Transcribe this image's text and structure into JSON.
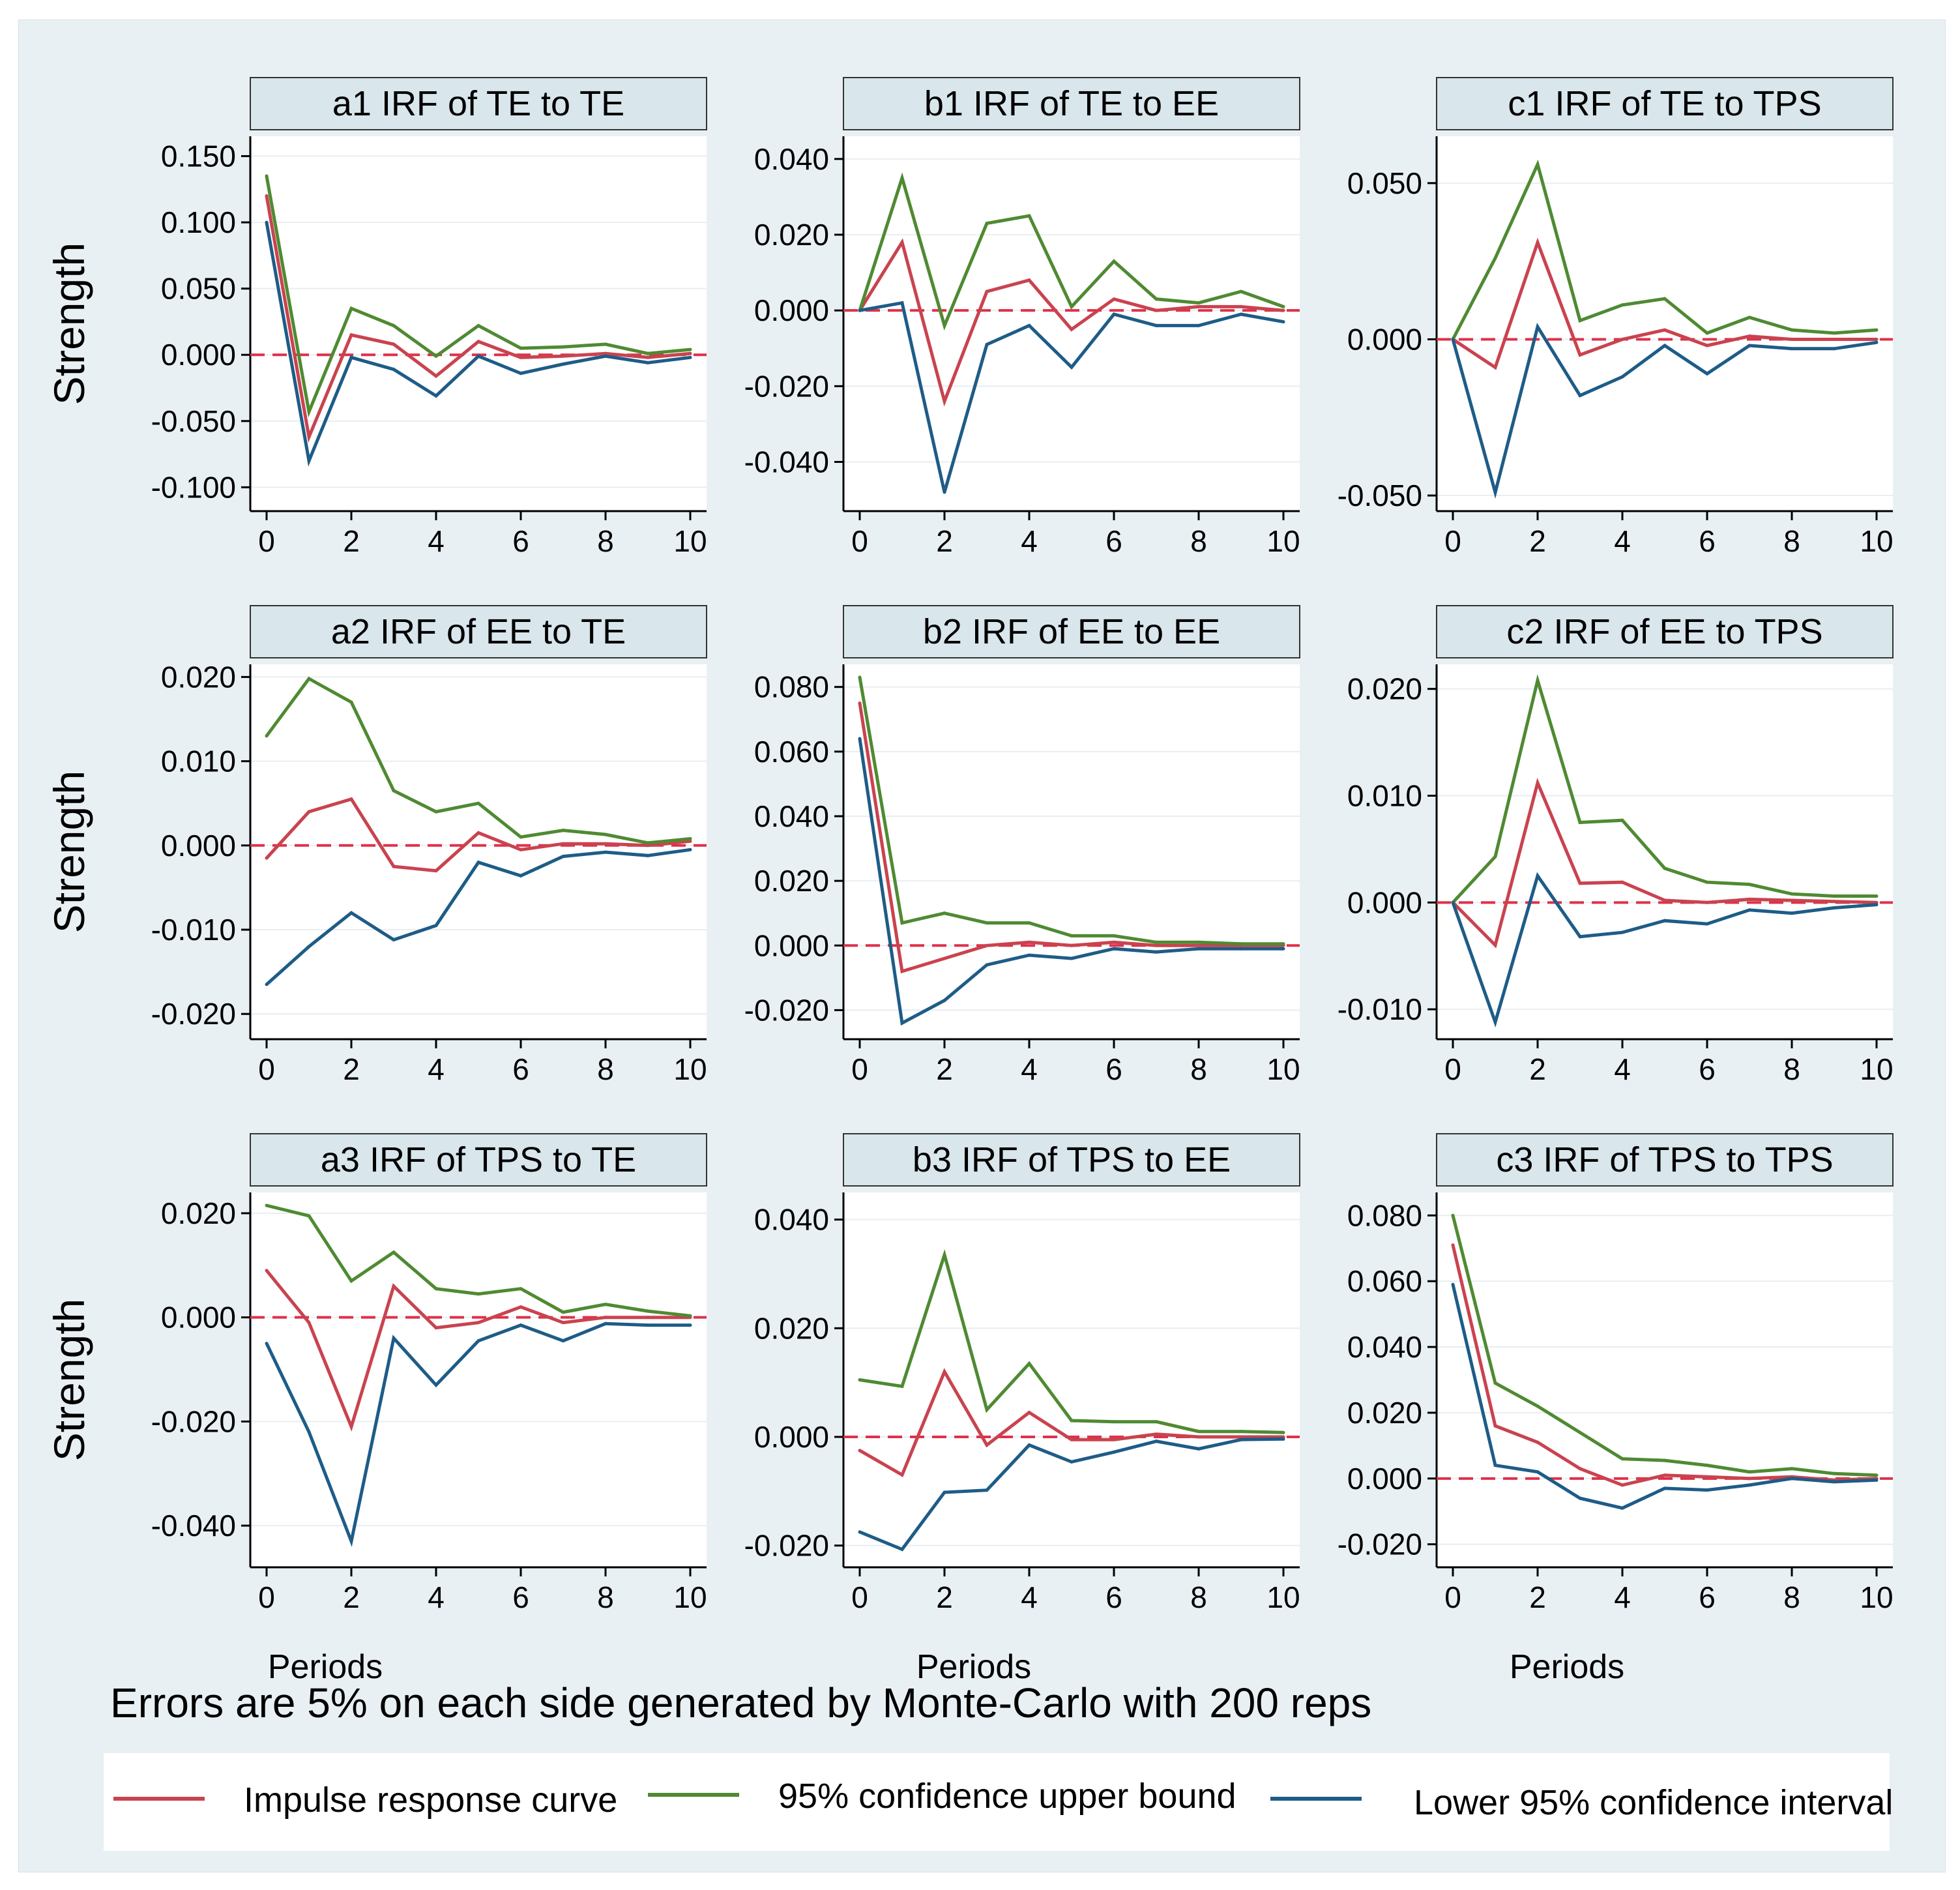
{
  "chart_data": [
    {
      "id": "a1",
      "type": "line",
      "title": "a1 IRF of TE to TE",
      "ylabel": "Strength",
      "xlabel": "",
      "x": [
        0,
        1,
        2,
        3,
        4,
        5,
        6,
        7,
        8,
        9,
        10
      ],
      "xticks": [
        0,
        2,
        4,
        6,
        8,
        10
      ],
      "yticks": [
        -0.1,
        -0.05,
        0,
        0.05,
        0.1,
        0.15
      ],
      "ytick_labels": [
        "-0.100",
        "-0.050",
        "0.000",
        "0.050",
        "0.100",
        "0.150"
      ],
      "ylim": [
        -0.118,
        0.165
      ],
      "series": [
        {
          "name": "Impulse response curve",
          "values": [
            0.12,
            -0.062,
            0.015,
            0.008,
            -0.016,
            0.01,
            -0.002,
            -0.001,
            0.001,
            -0.002,
            0.001
          ]
        },
        {
          "name": "95% confidence upper bound",
          "values": [
            0.135,
            -0.043,
            0.035,
            0.022,
            -0.001,
            0.022,
            0.005,
            0.006,
            0.008,
            0.001,
            0.004
          ]
        },
        {
          "name": "Lower 95% confidence interval",
          "values": [
            0.1,
            -0.08,
            -0.002,
            -0.011,
            -0.031,
            -0.001,
            -0.014,
            -0.007,
            -0.001,
            -0.006,
            -0.002
          ]
        }
      ]
    },
    {
      "id": "b1",
      "type": "line",
      "title": "b1 IRF of TE to EE",
      "ylabel": "",
      "xlabel": "",
      "x": [
        0,
        1,
        2,
        3,
        4,
        5,
        6,
        7,
        8,
        9,
        10
      ],
      "xticks": [
        0,
        2,
        4,
        6,
        8,
        10
      ],
      "yticks": [
        -0.04,
        -0.02,
        0,
        0.02,
        0.04
      ],
      "ytick_labels": [
        "-0.040",
        "-0.020",
        "0.000",
        "0.020",
        "0.040"
      ],
      "ylim": [
        -0.053,
        0.046
      ],
      "series": [
        {
          "name": "Impulse response curve",
          "values": [
            0,
            0.018,
            -0.024,
            0.005,
            0.008,
            -0.005,
            0.003,
            0,
            0.001,
            0.001,
            0
          ]
        },
        {
          "name": "95% confidence upper bound",
          "values": [
            0,
            0.035,
            -0.004,
            0.023,
            0.025,
            0.001,
            0.013,
            0.003,
            0.002,
            0.005,
            0.001
          ]
        },
        {
          "name": "Lower 95% confidence interval",
          "values": [
            0,
            0.002,
            -0.048,
            -0.009,
            -0.004,
            -0.015,
            -0.001,
            -0.004,
            -0.004,
            -0.001,
            -0.003
          ]
        }
      ]
    },
    {
      "id": "c1",
      "type": "line",
      "title": "c1 IRF of TE to TPS",
      "ylabel": "",
      "xlabel": "",
      "x": [
        0,
        1,
        2,
        3,
        4,
        5,
        6,
        7,
        8,
        9,
        10
      ],
      "xticks": [
        0,
        2,
        4,
        6,
        8,
        10
      ],
      "yticks": [
        -0.05,
        0,
        0.05
      ],
      "ytick_labels": [
        "-0.050",
        "0.000",
        "0.050"
      ],
      "ylim": [
        -0.055,
        0.065
      ],
      "series": [
        {
          "name": "Impulse response curve",
          "values": [
            0,
            -0.009,
            0.031,
            -0.005,
            0,
            0.003,
            -0.002,
            0.001,
            0,
            0,
            0
          ]
        },
        {
          "name": "95% confidence upper bound",
          "values": [
            0,
            0.026,
            0.056,
            0.006,
            0.011,
            0.013,
            0.002,
            0.007,
            0.003,
            0.002,
            0.003
          ]
        },
        {
          "name": "Lower 95% confidence interval",
          "values": [
            0,
            -0.049,
            0.004,
            -0.018,
            -0.012,
            -0.002,
            -0.011,
            -0.002,
            -0.003,
            -0.003,
            -0.001
          ]
        }
      ]
    },
    {
      "id": "a2",
      "type": "line",
      "title": "a2 IRF of EE to TE",
      "ylabel": "Strength",
      "xlabel": "",
      "x": [
        0,
        1,
        2,
        3,
        4,
        5,
        6,
        7,
        8,
        9,
        10
      ],
      "xticks": [
        0,
        2,
        4,
        6,
        8,
        10
      ],
      "yticks": [
        -0.02,
        -0.01,
        0,
        0.01,
        0.02
      ],
      "ytick_labels": [
        "-0.020",
        "-0.010",
        "0.000",
        "0.010",
        "0.020"
      ],
      "ylim": [
        -0.023,
        0.0215
      ],
      "series": [
        {
          "name": "Impulse response curve",
          "values": [
            -0.0015,
            0.004,
            0.0055,
            -0.0025,
            -0.003,
            0.0015,
            -0.0005,
            0.0002,
            0.0002,
            0,
            0.0005
          ]
        },
        {
          "name": "95% confidence upper bound",
          "values": [
            0.013,
            0.0198,
            0.017,
            0.0065,
            0.004,
            0.005,
            0.001,
            0.0018,
            0.0013,
            0.0003,
            0.0008
          ]
        },
        {
          "name": "Lower 95% confidence interval",
          "values": [
            -0.0165,
            -0.012,
            -0.008,
            -0.0112,
            -0.0095,
            -0.002,
            -0.0036,
            -0.0013,
            -0.0008,
            -0.0012,
            -0.0005
          ]
        }
      ]
    },
    {
      "id": "b2",
      "type": "line",
      "title": "b2 IRF of EE to EE",
      "ylabel": "",
      "xlabel": "",
      "x": [
        0,
        1,
        2,
        3,
        4,
        5,
        6,
        7,
        8,
        9,
        10
      ],
      "xticks": [
        0,
        2,
        4,
        6,
        8,
        10
      ],
      "yticks": [
        -0.02,
        0,
        0.02,
        0.04,
        0.06,
        0.08
      ],
      "ytick_labels": [
        "-0.020",
        "0.000",
        "0.020",
        "0.040",
        "0.060",
        "0.080"
      ],
      "ylim": [
        -0.029,
        0.087
      ],
      "series": [
        {
          "name": "Impulse response curve",
          "values": [
            0.075,
            -0.008,
            -0.004,
            0.0,
            0.001,
            0.0,
            0.001,
            0.0,
            0.0,
            0.0,
            0.0
          ]
        },
        {
          "name": "95% confidence upper bound",
          "values": [
            0.083,
            0.007,
            0.01,
            0.007,
            0.007,
            0.003,
            0.003,
            0.001,
            0.001,
            0.0005,
            0.0005
          ]
        },
        {
          "name": "Lower 95% confidence interval",
          "values": [
            0.064,
            -0.024,
            -0.017,
            -0.006,
            -0.003,
            -0.004,
            -0.001,
            -0.002,
            -0.001,
            -0.001,
            -0.001
          ]
        }
      ]
    },
    {
      "id": "c2",
      "type": "line",
      "title": "c2 IRF of EE to TPS",
      "ylabel": "",
      "xlabel": "",
      "x": [
        0,
        1,
        2,
        3,
        4,
        5,
        6,
        7,
        8,
        9,
        10
      ],
      "xticks": [
        0,
        2,
        4,
        6,
        8,
        10
      ],
      "yticks": [
        -0.01,
        0,
        0.01,
        0.02
      ],
      "ytick_labels": [
        "-0.010",
        "0.000",
        "0.010",
        "0.020"
      ],
      "ylim": [
        -0.0128,
        0.0223
      ],
      "series": [
        {
          "name": "Impulse response curve",
          "values": [
            0,
            -0.004,
            0.0112,
            0.0018,
            0.0019,
            0.0002,
            0,
            0.0003,
            0.0002,
            0.0001,
            0
          ]
        },
        {
          "name": "95% confidence upper bound",
          "values": [
            0,
            0.0043,
            0.0208,
            0.0075,
            0.0077,
            0.0032,
            0.0019,
            0.0017,
            0.0008,
            0.0006,
            0.0006
          ]
        },
        {
          "name": "Lower 95% confidence interval",
          "values": [
            0,
            -0.0112,
            0.0025,
            -0.0032,
            -0.0028,
            -0.0017,
            -0.002,
            -0.0007,
            -0.001,
            -0.0005,
            -0.0002
          ]
        }
      ]
    },
    {
      "id": "a3",
      "type": "line",
      "title": "a3 IRF of TPS to TE",
      "ylabel": "Strength",
      "xlabel": "Periods",
      "x": [
        0,
        1,
        2,
        3,
        4,
        5,
        6,
        7,
        8,
        9,
        10
      ],
      "xticks": [
        0,
        2,
        4,
        6,
        8,
        10
      ],
      "yticks": [
        -0.04,
        -0.02,
        0,
        0.02
      ],
      "ytick_labels": [
        "-0.040",
        "-0.020",
        "0.000",
        "0.020"
      ],
      "ylim": [
        -0.048,
        0.024
      ],
      "series": [
        {
          "name": "Impulse response curve",
          "values": [
            0.009,
            -0.001,
            -0.021,
            0.006,
            -0.002,
            -0.001,
            0.002,
            -0.001,
            0,
            0,
            0
          ]
        },
        {
          "name": "95% confidence upper bound",
          "values": [
            0.0215,
            0.0195,
            0.007,
            0.0125,
            0.0055,
            0.0045,
            0.0055,
            0.001,
            0.0025,
            0.0012,
            0.0003
          ]
        },
        {
          "name": "Lower 95% confidence interval",
          "values": [
            -0.005,
            -0.022,
            -0.043,
            -0.004,
            -0.013,
            -0.0045,
            -0.0015,
            -0.0045,
            -0.0012,
            -0.0015,
            -0.0015
          ]
        }
      ]
    },
    {
      "id": "b3",
      "type": "line",
      "title": "b3 IRF of TPS to EE",
      "ylabel": "",
      "xlabel": "Periods",
      "x": [
        0,
        1,
        2,
        3,
        4,
        5,
        6,
        7,
        8,
        9,
        10
      ],
      "xticks": [
        0,
        2,
        4,
        6,
        8,
        10
      ],
      "yticks": [
        -0.02,
        0,
        0.02,
        0.04
      ],
      "ytick_labels": [
        "-0.020",
        "0.000",
        "0.020",
        "0.040"
      ],
      "ylim": [
        -0.024,
        0.045
      ],
      "series": [
        {
          "name": "Impulse response curve",
          "values": [
            -0.0025,
            -0.007,
            0.012,
            -0.0015,
            0.0045,
            -0.0005,
            -0.0005,
            0.0005,
            0,
            0,
            0
          ]
        },
        {
          "name": "95% confidence upper bound",
          "values": [
            0.0105,
            0.0093,
            0.0335,
            0.005,
            0.0135,
            0.003,
            0.0028,
            0.0028,
            0.001,
            0.001,
            0.0008
          ]
        },
        {
          "name": "Lower 95% confidence interval",
          "values": [
            -0.0175,
            -0.0207,
            -0.0102,
            -0.0098,
            -0.0015,
            -0.0046,
            -0.0028,
            -0.0008,
            -0.0022,
            -0.0005,
            -0.0004
          ]
        }
      ]
    },
    {
      "id": "c3",
      "type": "line",
      "title": "c3 IRF of TPS to TPS",
      "ylabel": "",
      "xlabel": "Periods",
      "x": [
        0,
        1,
        2,
        3,
        4,
        5,
        6,
        7,
        8,
        9,
        10
      ],
      "xticks": [
        0,
        2,
        4,
        6,
        8,
        10
      ],
      "yticks": [
        -0.02,
        0,
        0.02,
        0.04,
        0.06,
        0.08
      ],
      "ytick_labels": [
        "-0.020",
        "0.000",
        "0.020",
        "0.040",
        "0.060",
        "0.080"
      ],
      "ylim": [
        -0.027,
        0.087
      ],
      "series": [
        {
          "name": "Impulse response curve",
          "values": [
            0.071,
            0.016,
            0.011,
            0.003,
            -0.002,
            0.001,
            0.0005,
            0,
            0.0005,
            -0.0005,
            0
          ]
        },
        {
          "name": "95% confidence upper bound",
          "values": [
            0.08,
            0.029,
            0.022,
            0.014,
            0.006,
            0.0055,
            0.004,
            0.002,
            0.003,
            0.0015,
            0.001
          ]
        },
        {
          "name": "Lower 95% confidence interval",
          "values": [
            0.059,
            0.004,
            0.002,
            -0.006,
            -0.009,
            -0.003,
            -0.0035,
            -0.002,
            0,
            -0.001,
            -0.0005
          ]
        }
      ]
    }
  ],
  "note": "Errors are 5% on each side generated by Monte-Carlo with 200 reps",
  "legend": [
    {
      "label": "Impulse response curve",
      "color": "#c9434f"
    },
    {
      "label": "95% confidence upper bound",
      "color": "#4f8a32"
    },
    {
      "label": "Lower 95% confidence interval",
      "color": "#1e5c87"
    }
  ],
  "colors": {
    "irf": "#c9434f",
    "upper": "#4f8a32",
    "lower": "#1e5c87",
    "zero_line": "#e0304a",
    "title_bg": "#d9e6ec",
    "plot_bg": "#ffffff",
    "grid": "#e8eef2"
  }
}
